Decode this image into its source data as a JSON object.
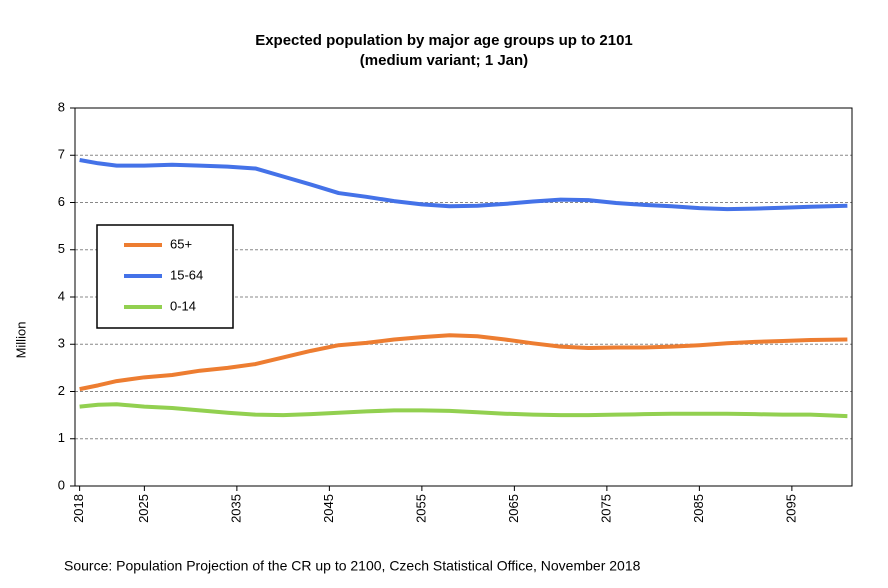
{
  "chart_data": {
    "type": "line",
    "title": "Expected population by major age groups up to 2101",
    "subtitle": "(medium  variant; 1 Jan)",
    "y_label": "Million",
    "source": "Source: Population Projection of the CR up to 2100, Czech Statistical Office, November  2018",
    "x": [
      2018,
      2020,
      2022,
      2025,
      2028,
      2031,
      2034,
      2037,
      2040,
      2043,
      2046,
      2049,
      2052,
      2055,
      2058,
      2061,
      2064,
      2067,
      2070,
      2073,
      2076,
      2079,
      2082,
      2085,
      2088,
      2091,
      2094,
      2097,
      2101
    ],
    "series": [
      {
        "name": "65+",
        "color": "#ed7d31",
        "values": [
          2.05,
          2.13,
          2.22,
          2.3,
          2.35,
          2.44,
          2.5,
          2.58,
          2.72,
          2.86,
          2.98,
          3.03,
          3.1,
          3.15,
          3.19,
          3.17,
          3.1,
          3.02,
          2.95,
          2.92,
          2.93,
          2.93,
          2.95,
          2.98,
          3.02,
          3.05,
          3.07,
          3.09,
          3.1
        ]
      },
      {
        "name": "15-64",
        "color": "#4472e8",
        "values": [
          6.9,
          6.83,
          6.78,
          6.78,
          6.8,
          6.78,
          6.76,
          6.72,
          6.55,
          6.38,
          6.2,
          6.12,
          6.03,
          5.96,
          5.92,
          5.93,
          5.97,
          6.02,
          6.06,
          6.05,
          5.99,
          5.95,
          5.92,
          5.88,
          5.86,
          5.87,
          5.89,
          5.91,
          5.93
        ]
      },
      {
        "name": "0-14",
        "color": "#92d050",
        "values": [
          1.68,
          1.72,
          1.73,
          1.68,
          1.65,
          1.6,
          1.55,
          1.51,
          1.5,
          1.52,
          1.55,
          1.58,
          1.6,
          1.6,
          1.59,
          1.56,
          1.53,
          1.51,
          1.5,
          1.5,
          1.51,
          1.52,
          1.53,
          1.53,
          1.53,
          1.52,
          1.51,
          1.51,
          1.48
        ]
      }
    ],
    "xlim": [
      2017.5,
      2101.5
    ],
    "xticks": [
      2018,
      2025,
      2035,
      2045,
      2055,
      2065,
      2075,
      2085,
      2095
    ],
    "ylim": [
      0,
      8
    ],
    "yticks": [
      0,
      1,
      2,
      3,
      4,
      5,
      6,
      7,
      8
    ],
    "grid": true
  }
}
